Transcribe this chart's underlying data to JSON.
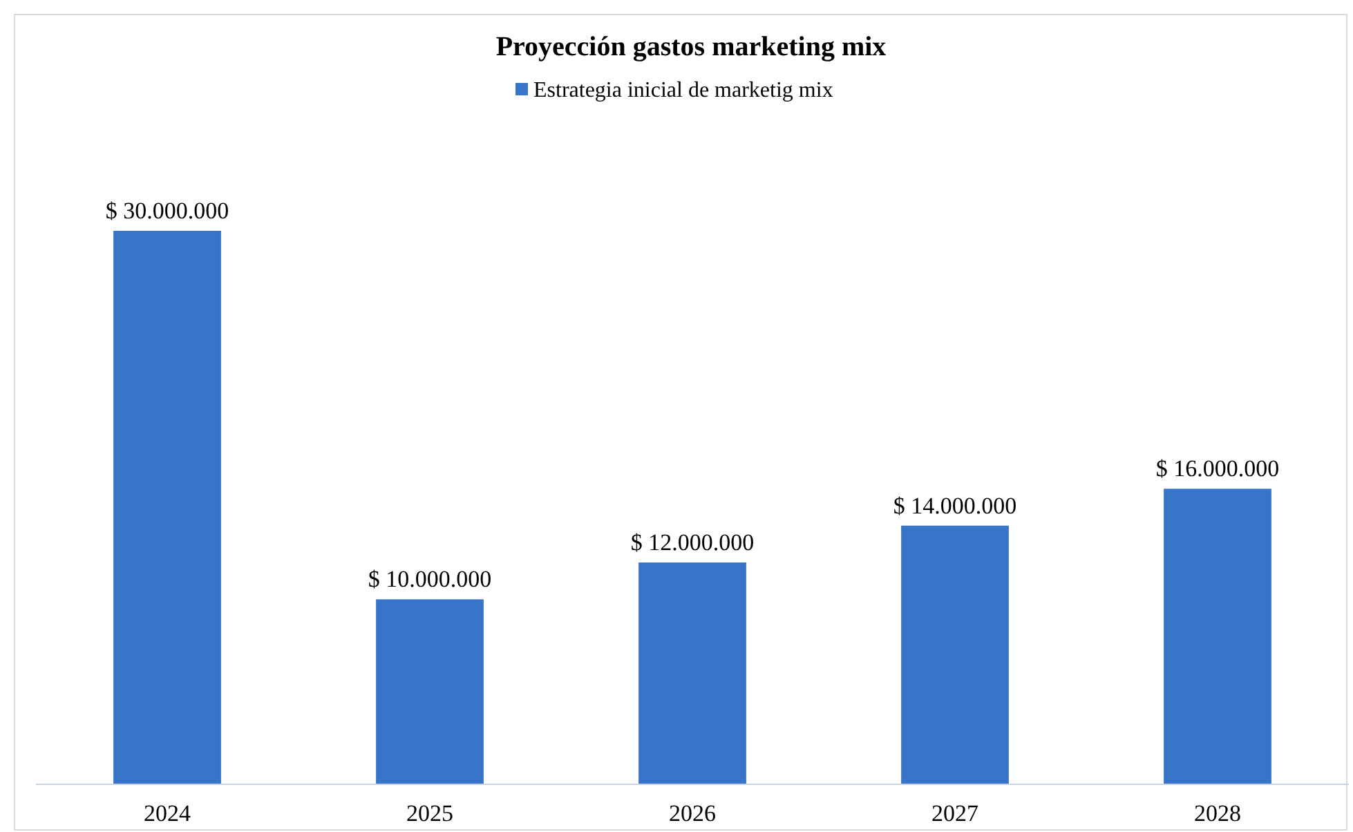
{
  "chart_data": {
    "type": "bar",
    "title": "Proyección gastos marketing mix",
    "categories": [
      "2024",
      "2025",
      "2026",
      "2027",
      "2028"
    ],
    "series": [
      {
        "name": "Estrategia inicial de marketig mix",
        "color": "#3874c8",
        "values": [
          30000000,
          10000000,
          12000000,
          14000000,
          16000000
        ],
        "value_labels": [
          "$ 30.000.000",
          "$ 10.000.000",
          "$ 12.000.000",
          "$ 14.000.000",
          "$ 16.000.000"
        ]
      }
    ],
    "legend": "top",
    "grid": false
  }
}
